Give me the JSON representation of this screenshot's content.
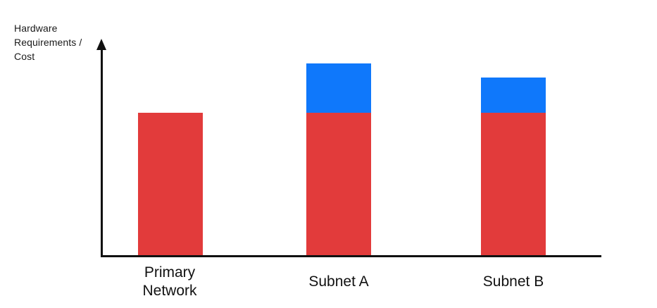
{
  "figure": {
    "y_axis_title_lines": [
      "Hardware",
      "Requirements /",
      "Cost"
    ]
  },
  "chart_data": {
    "type": "bar",
    "subtype": "stacked",
    "title": "",
    "xlabel": "",
    "ylabel": "Hardware Requirements / Cost",
    "categories": [
      "Primary Network",
      "Subnet A",
      "Subnet B"
    ],
    "series": [
      {
        "name": "red",
        "color": "#E23B3B",
        "values": [
          202,
          202,
          202
        ]
      },
      {
        "name": "blue",
        "color": "#0F78FB",
        "values": [
          0,
          70,
          50
        ]
      }
    ],
    "ylim": [
      0,
      306
    ],
    "units": "relative (no numeric scale or ticks shown)",
    "axis_ticks": "none",
    "legend": "none",
    "grid": false,
    "axis_color": "#111111",
    "label_color": "#111111"
  }
}
